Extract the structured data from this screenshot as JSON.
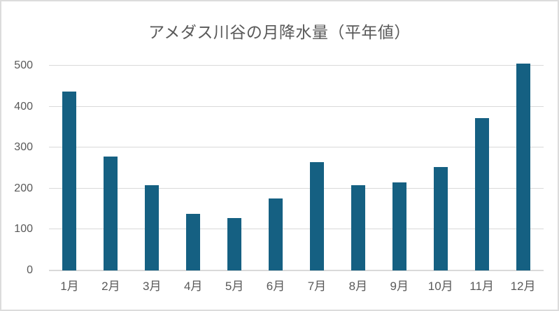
{
  "chart_data": {
    "type": "bar",
    "title": "アメダス川谷の月降水量（平年値）",
    "categories": [
      "1月",
      "2月",
      "3月",
      "4月",
      "5月",
      "6月",
      "7月",
      "8月",
      "9月",
      "10月",
      "11月",
      "12月"
    ],
    "values": [
      437,
      278,
      208,
      138,
      128,
      176,
      265,
      208,
      215,
      253,
      372,
      505
    ],
    "xlabel": "",
    "ylabel": "",
    "ylim": [
      0,
      500
    ],
    "yticks": [
      0,
      100,
      200,
      300,
      400,
      500
    ],
    "grid": true,
    "legend": false,
    "colors": {
      "bar": "#156082",
      "gridline": "#d9d9d9",
      "axis_line": "#d9d9d9",
      "text": "#595959",
      "background": "#ffffff",
      "border": "#dcdcdc"
    }
  }
}
